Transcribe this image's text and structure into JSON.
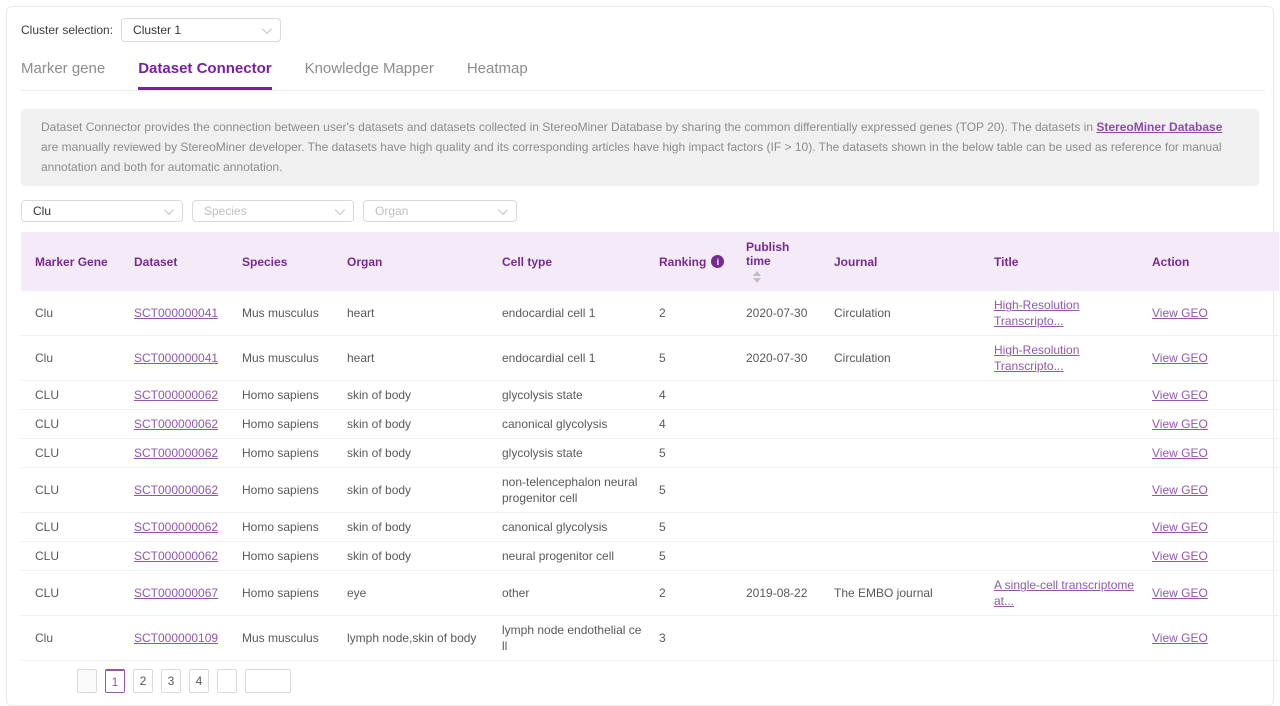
{
  "colors": {
    "accent_purple": "#7a1fa2",
    "header_text_purple": "#752b90",
    "link_purple": "#9257ad",
    "header_bg": "#f5eaf7",
    "info_banner_bg": "#f0f0f0"
  },
  "cluster_selector": {
    "label": "Cluster selection:",
    "value": "Cluster 1"
  },
  "tabs": [
    {
      "label": "Marker gene",
      "active": false
    },
    {
      "label": "Dataset Connector",
      "active": true
    },
    {
      "label": "Knowledge Mapper",
      "active": false
    },
    {
      "label": "Heatmap",
      "active": false
    }
  ],
  "info_banner": {
    "text_before": "Dataset Connector provides the connection between user's datasets and datasets collected in StereoMiner Database by sharing the common differentially expressed genes (TOP 20). The datasets in ",
    "link_text": "StereoMiner Database",
    "text_after": " are manually reviewed by StereoMiner developer. The datasets have high quality and its corresponding articles have high impact factors (IF > 10). The datasets shown in the below table can be used as reference for manual annotation and both for automatic annotation."
  },
  "filters": [
    {
      "name": "marker-gene-filter",
      "value": "Clu",
      "is_placeholder": false
    },
    {
      "name": "species-filter",
      "value": "Species",
      "is_placeholder": true
    },
    {
      "name": "organ-filter",
      "value": "Organ",
      "is_placeholder": true
    }
  ],
  "table": {
    "columns": [
      "Marker Gene",
      "Dataset",
      "Species",
      "Organ",
      "Cell type",
      "Ranking",
      "Publish time",
      "Journal",
      "Title",
      "Action"
    ],
    "rows": [
      {
        "marker_gene": "Clu",
        "dataset": "SCT000000041",
        "species": "Mus musculus",
        "organ": "heart",
        "cell_type": "endocardial cell 1",
        "ranking": "2",
        "publish_time": "2020-07-30",
        "journal": "Circulation",
        "title": "High-Resolution Transcripto...",
        "action": "View GEO"
      },
      {
        "marker_gene": "Clu",
        "dataset": "SCT000000041",
        "species": "Mus musculus",
        "organ": "heart",
        "cell_type": "endocardial cell 1",
        "ranking": "5",
        "publish_time": "2020-07-30",
        "journal": "Circulation",
        "title": "High-Resolution Transcripto...",
        "action": "View GEO"
      },
      {
        "marker_gene": "CLU",
        "dataset": "SCT000000062",
        "species": "Homo sapiens",
        "organ": "skin of body",
        "cell_type": "glycolysis state",
        "ranking": "4",
        "publish_time": "",
        "journal": "",
        "title": "",
        "action": "View GEO"
      },
      {
        "marker_gene": "CLU",
        "dataset": "SCT000000062",
        "species": "Homo sapiens",
        "organ": "skin of body",
        "cell_type": "canonical glycolysis",
        "ranking": "4",
        "publish_time": "",
        "journal": "",
        "title": "",
        "action": "View GEO"
      },
      {
        "marker_gene": "CLU",
        "dataset": "SCT000000062",
        "species": "Homo sapiens",
        "organ": "skin of body",
        "cell_type": "glycolysis state",
        "ranking": "5",
        "publish_time": "",
        "journal": "",
        "title": "",
        "action": "View GEO"
      },
      {
        "marker_gene": "CLU",
        "dataset": "SCT000000062",
        "species": "Homo sapiens",
        "organ": "skin of body",
        "cell_type": "non-telencephalon neural progenitor cell",
        "ranking": "5",
        "publish_time": "",
        "journal": "",
        "title": "",
        "action": "View GEO"
      },
      {
        "marker_gene": "CLU",
        "dataset": "SCT000000062",
        "species": "Homo sapiens",
        "organ": "skin of body",
        "cell_type": "canonical glycolysis",
        "ranking": "5",
        "publish_time": "",
        "journal": "",
        "title": "",
        "action": "View GEO"
      },
      {
        "marker_gene": "CLU",
        "dataset": "SCT000000062",
        "species": "Homo sapiens",
        "organ": "skin of body",
        "cell_type": "neural progenitor cell",
        "ranking": "5",
        "publish_time": "",
        "journal": "",
        "title": "",
        "action": "View GEO"
      },
      {
        "marker_gene": "CLU",
        "dataset": "SCT000000067",
        "species": "Homo sapiens",
        "organ": "eye",
        "cell_type": "other",
        "ranking": "2",
        "publish_time": "2019-08-22",
        "journal": "The EMBO journal",
        "title": "A single-cell transcriptome at...",
        "action": "View GEO"
      },
      {
        "marker_gene": "Clu",
        "dataset": "SCT000000109",
        "species": "Mus musculus",
        "organ": "lymph node,skin of body",
        "cell_type": "lymph node endothelial cell",
        "ranking": "3",
        "publish_time": "",
        "journal": "",
        "title": "",
        "action": "View GEO"
      }
    ]
  },
  "pagination": {
    "pages": [
      "1",
      "2",
      "3",
      "4"
    ],
    "active_page": "1"
  }
}
